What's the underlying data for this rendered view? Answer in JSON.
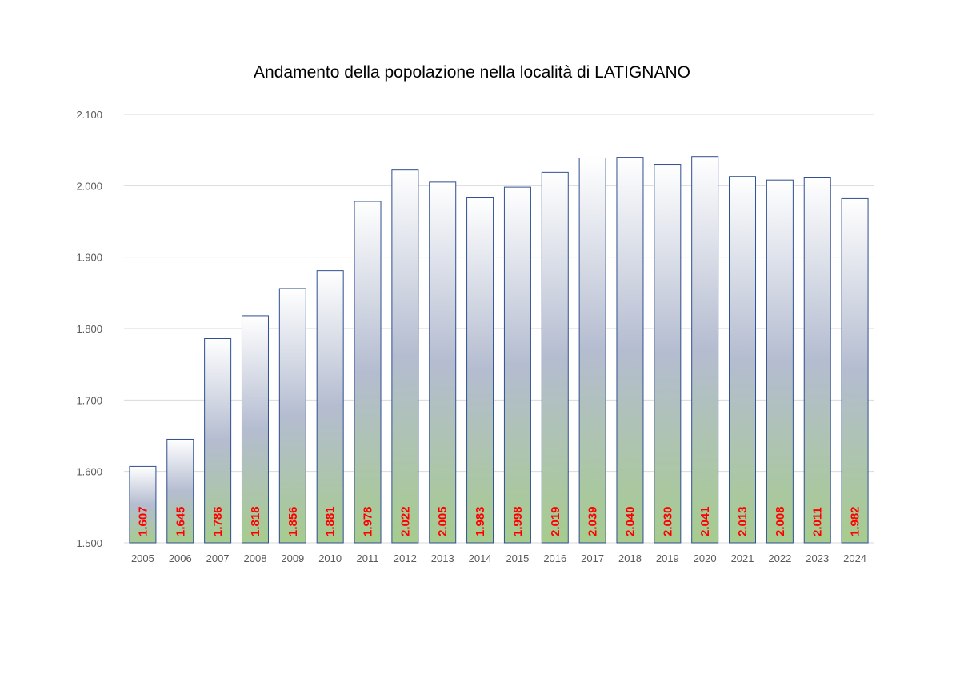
{
  "chart_data": {
    "type": "bar",
    "title": "Andamento della popolazione nella località di LATIGNANO",
    "xlabel": "",
    "ylabel": "",
    "categories": [
      "2005",
      "2006",
      "2007",
      "2008",
      "2009",
      "2010",
      "2011",
      "2012",
      "2013",
      "2014",
      "2015",
      "2016",
      "2017",
      "2018",
      "2019",
      "2020",
      "2021",
      "2022",
      "2023",
      "2024"
    ],
    "values": [
      1607,
      1645,
      1786,
      1818,
      1856,
      1881,
      1978,
      2022,
      2005,
      1983,
      1998,
      2019,
      2039,
      2040,
      2030,
      2041,
      2013,
      2008,
      2011,
      1982
    ],
    "data_labels": [
      "1.607",
      "1.645",
      "1.786",
      "1.818",
      "1.856",
      "1.881",
      "1.978",
      "2.022",
      "2.005",
      "1.983",
      "1.998",
      "2.019",
      "2.039",
      "2.040",
      "2.030",
      "2.041",
      "2.013",
      "2.008",
      "2.011",
      "1.982"
    ],
    "ylim": [
      1500,
      2100
    ],
    "y_ticks": [
      1500,
      1600,
      1700,
      1800,
      1900,
      2000,
      2100
    ],
    "y_tick_labels": [
      "1.500",
      "1.600",
      "1.700",
      "1.800",
      "1.900",
      "2.000",
      "2.100"
    ],
    "grid": true,
    "legend": "none",
    "colors": {
      "bar_top": "#ffffff",
      "bar_mid": "#b4bcd0",
      "bar_bottom": "#a6cc8e",
      "bar_border": "#2f4f8f",
      "label": "#ff0000",
      "grid": "#d9d9d9"
    }
  }
}
